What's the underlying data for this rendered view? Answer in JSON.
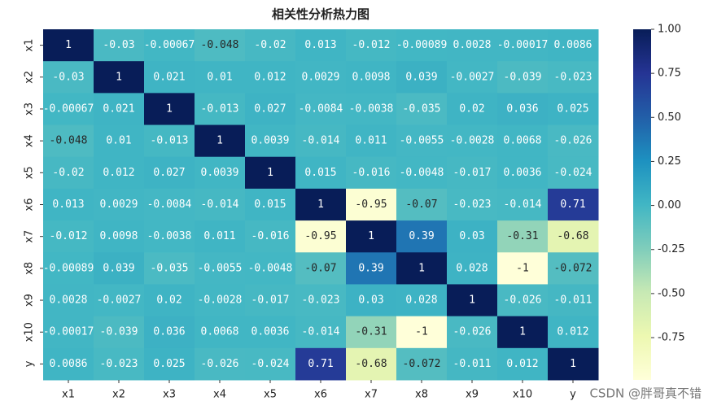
{
  "chart_data": {
    "type": "heatmap",
    "title": "相关性分析热力图",
    "x_categories": [
      "x1",
      "x2",
      "x3",
      "x4",
      "x5",
      "x6",
      "x7",
      "x8",
      "x9",
      "x10",
      "y"
    ],
    "y_categories": [
      "x1",
      "x2",
      "x3",
      "x4",
      "x5",
      "x6",
      "x7",
      "x8",
      "x9",
      "x10",
      "y"
    ],
    "values": [
      [
        1,
        -0.03,
        -0.00067,
        -0.048,
        -0.02,
        0.013,
        -0.012,
        -0.00089,
        0.0028,
        -0.00017,
        0.0086
      ],
      [
        -0.03,
        1,
        0.021,
        0.01,
        0.012,
        0.0029,
        0.0098,
        0.039,
        -0.0027,
        -0.039,
        -0.023
      ],
      [
        -0.00067,
        0.021,
        1,
        -0.013,
        0.027,
        -0.0084,
        -0.0038,
        -0.035,
        0.02,
        0.036,
        0.025
      ],
      [
        -0.048,
        0.01,
        -0.013,
        1,
        0.0039,
        -0.014,
        0.011,
        -0.0055,
        -0.0028,
        0.0068,
        -0.026
      ],
      [
        -0.02,
        0.012,
        0.027,
        0.0039,
        1,
        0.015,
        -0.016,
        -0.0048,
        -0.017,
        0.0036,
        -0.024
      ],
      [
        0.013,
        0.0029,
        -0.0084,
        -0.014,
        0.015,
        1,
        -0.95,
        -0.07,
        -0.023,
        -0.014,
        0.71
      ],
      [
        -0.012,
        0.0098,
        -0.0038,
        0.011,
        -0.016,
        -0.95,
        1,
        0.39,
        0.03,
        -0.31,
        -0.68
      ],
      [
        -0.00089,
        0.039,
        -0.035,
        -0.0055,
        -0.0048,
        -0.07,
        0.39,
        1,
        0.028,
        -1,
        -0.072
      ],
      [
        0.0028,
        -0.0027,
        0.02,
        -0.0028,
        -0.017,
        -0.023,
        0.03,
        0.028,
        1,
        -0.026,
        -0.011
      ],
      [
        -0.00017,
        -0.039,
        0.036,
        0.0068,
        0.0036,
        -0.014,
        -0.31,
        -1,
        -0.026,
        1,
        0.012
      ],
      [
        0.0086,
        -0.023,
        0.025,
        -0.026,
        -0.024,
        0.71,
        -0.68,
        -0.072,
        -0.011,
        0.012,
        1
      ]
    ],
    "colormap": "YlGnBu",
    "clim": [
      -0.99,
      1
    ],
    "cticks": [
      {
        "value": 1,
        "label": "1.00"
      },
      {
        "value": 0.75,
        "label": "0.75"
      },
      {
        "value": 0.5,
        "label": "0.50"
      },
      {
        "value": 0.25,
        "label": "0.25"
      },
      {
        "value": 0,
        "label": "0.00"
      },
      {
        "value": -0.25,
        "label": "-0.25"
      },
      {
        "value": -0.5,
        "label": "-0.50"
      },
      {
        "value": -0.75,
        "label": "-0.75"
      }
    ],
    "watermark": "CSDN @胖哥真不错"
  }
}
